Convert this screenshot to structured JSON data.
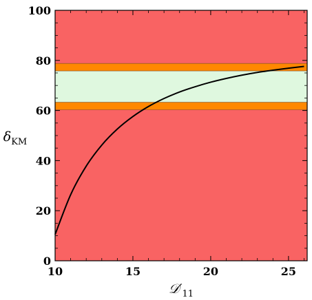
{
  "chart_data": {
    "type": "line",
    "xlim": [
      10,
      26.2
    ],
    "ylim": [
      0,
      100
    ],
    "x_ticks": [
      10,
      15,
      20,
      25
    ],
    "y_ticks": [
      0,
      20,
      40,
      60,
      80,
      100
    ],
    "x_tick_labels": [
      "10",
      "15",
      "20",
      "25"
    ],
    "y_tick_labels": [
      "0",
      "20",
      "40",
      "60",
      "80",
      "100"
    ],
    "xlabel": {
      "main": "𝒟′",
      "sub": "11"
    },
    "ylabel": {
      "main": "δ",
      "sub": "KM"
    },
    "bands": [
      {
        "name": "excluded",
        "y": [
          0,
          100
        ],
        "color": "#f96363"
      },
      {
        "name": "orange-2sigma",
        "y": [
          60.3,
          78.8
        ],
        "color": "#ff8800"
      },
      {
        "name": "green-1sigma",
        "y": [
          63.3,
          75.8
        ],
        "color": "#dff8df"
      }
    ],
    "series": [
      {
        "color": "#000000",
        "x": [
          10,
          11,
          12,
          13,
          14,
          15,
          16,
          17,
          18,
          19,
          20,
          21,
          22,
          23,
          24,
          25,
          26
        ],
        "y": [
          10.5,
          26.4,
          37.8,
          46.2,
          52.6,
          57.6,
          61.6,
          64.8,
          67.4,
          69.5,
          71.3,
          72.8,
          74.1,
          75.2,
          76.1,
          76.9,
          77.6
        ]
      }
    ],
    "grid": false,
    "legend": "none"
  }
}
